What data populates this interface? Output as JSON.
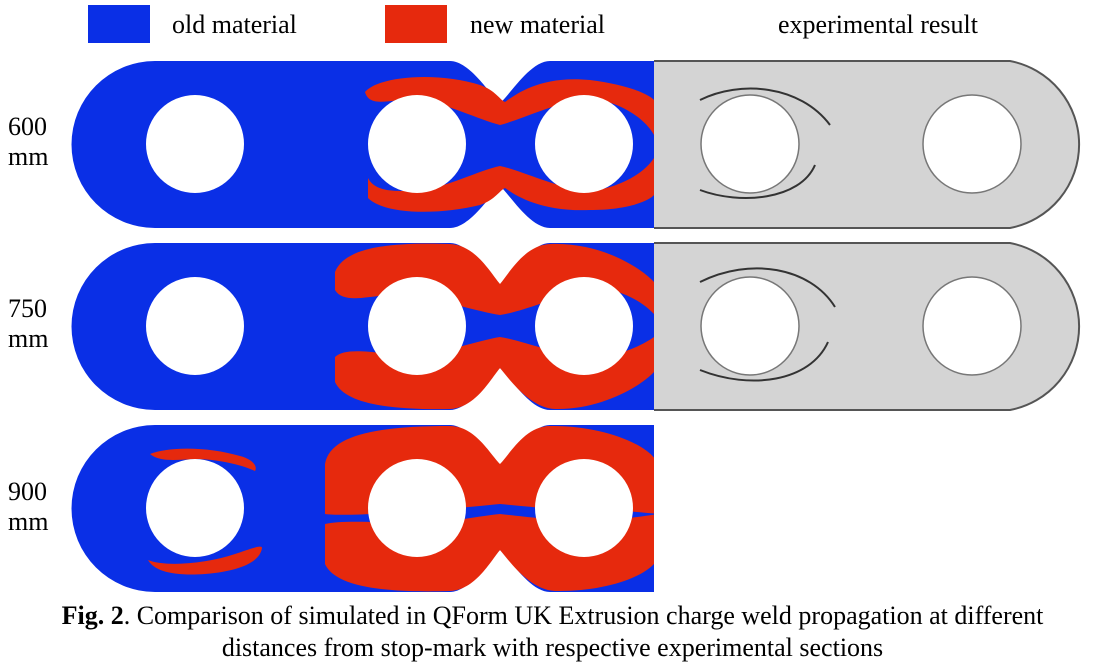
{
  "colors": {
    "old_material": "#0a2fe6",
    "new_material": "#e6290d",
    "experimental_fill": "#d4d4d4",
    "experimental_outline": "#555555"
  },
  "legend": {
    "old_material": "old material",
    "new_material": "new material",
    "experimental": "experimental result"
  },
  "rows": [
    {
      "label_value": "600",
      "label_unit": "mm"
    },
    {
      "label_value": "750",
      "label_unit": "mm"
    },
    {
      "label_value": "900",
      "label_unit": "mm"
    }
  ],
  "caption": {
    "prefix": "Fig. 2",
    "line1": ". Comparison of simulated in QForm UK Extrusion charge weld propagation at different",
    "line2": "distances from stop-mark with respective experimental sections"
  }
}
